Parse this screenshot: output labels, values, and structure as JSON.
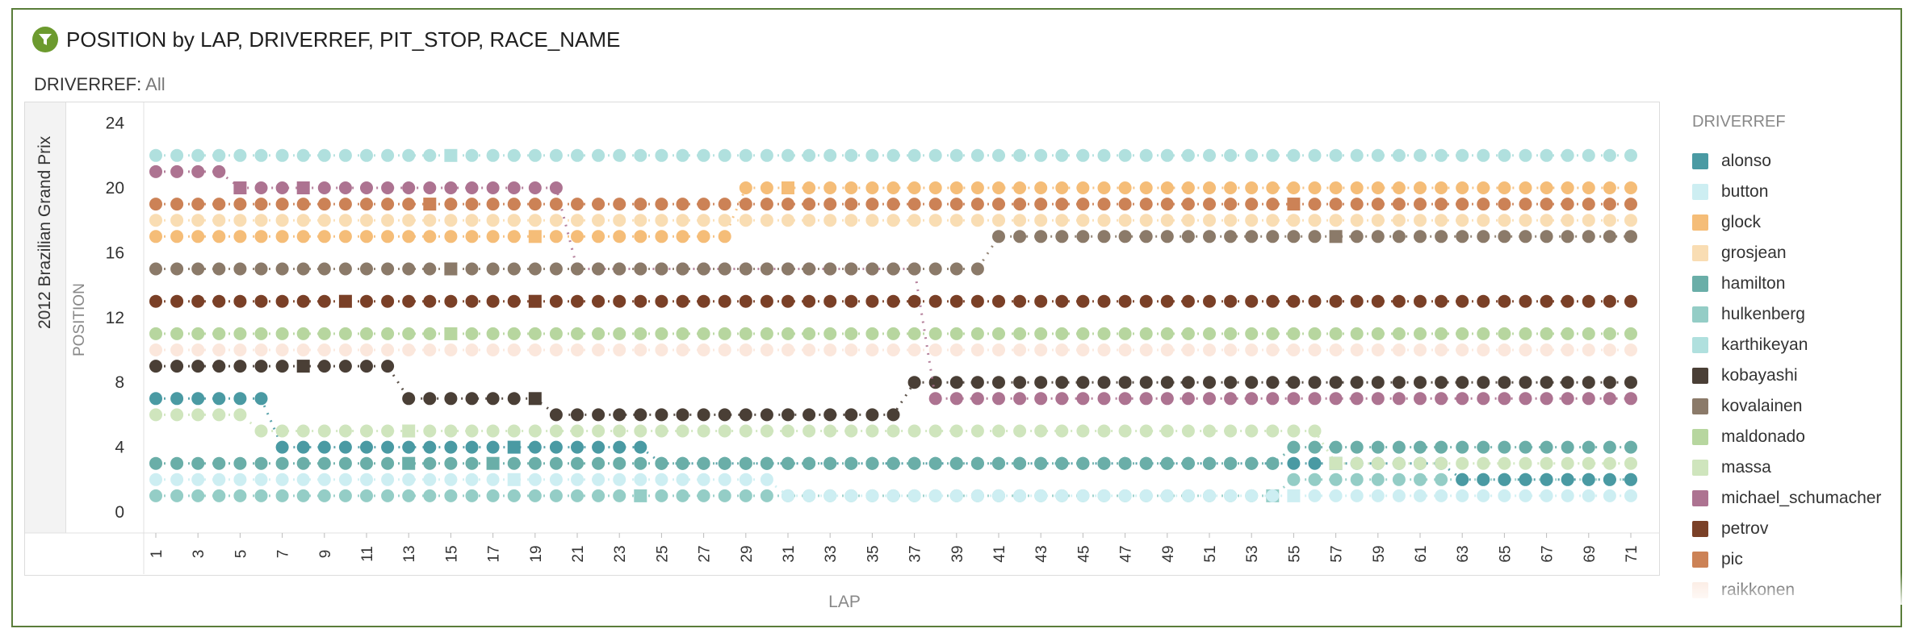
{
  "header": {
    "title": "POSITION by LAP, DRIVERREF, PIT_STOP, RACE_NAME",
    "filter_label": "DRIVERREF:",
    "filter_value": "All"
  },
  "legend": {
    "title": "DRIVERREF",
    "items": [
      {
        "label": "alonso",
        "color": "#4a9aa3"
      },
      {
        "label": "button",
        "color": "#cdeef2"
      },
      {
        "label": "glock",
        "color": "#f5bd78"
      },
      {
        "label": "grosjean",
        "color": "#f9ddb3"
      },
      {
        "label": "hamilton",
        "color": "#6aaea8"
      },
      {
        "label": "hulkenberg",
        "color": "#94cdc6"
      },
      {
        "label": "karthikeyan",
        "color": "#b0e0de"
      },
      {
        "label": "kobayashi",
        "color": "#4a3f36"
      },
      {
        "label": "kovalainen",
        "color": "#8b7a69"
      },
      {
        "label": "maldonado",
        "color": "#b7d69f"
      },
      {
        "label": "massa",
        "color": "#cfe5bd"
      },
      {
        "label": "michael_schumacher",
        "color": "#ad7391"
      },
      {
        "label": "petrov",
        "color": "#7a4027"
      },
      {
        "label": "pic",
        "color": "#cc8256"
      },
      {
        "label": "raikkonen",
        "color": "#fbe7dc"
      }
    ]
  },
  "chart_data": {
    "type": "line",
    "facet": "2012 Brazilian Grand Prix",
    "xlabel": "LAP",
    "ylabel": "POSITION",
    "xlim": [
      1,
      71
    ],
    "ylim": [
      0,
      24
    ],
    "x_ticks": [
      "1",
      "3",
      "5",
      "7",
      "9",
      "11",
      "13",
      "15",
      "17",
      "19",
      "21",
      "23",
      "25",
      "27",
      "29",
      "31",
      "33",
      "35",
      "37",
      "39",
      "41",
      "43",
      "45",
      "47",
      "49",
      "51",
      "53",
      "55",
      "57",
      "59",
      "61",
      "63",
      "65",
      "67",
      "69",
      "71"
    ],
    "y_ticks": [
      "0",
      "4",
      "8",
      "12",
      "16",
      "20",
      "24"
    ],
    "marker_shape_meaning": "square = pit stop lap, circle = no pit stop",
    "series": [
      {
        "name": "hulkenberg",
        "color": "#94cdc6",
        "positions": [
          {
            "from": 1,
            "to": 18,
            "pos": 1
          },
          {
            "from": 19,
            "to": 54,
            "pos": 1
          },
          {
            "from": 55,
            "to": 71,
            "pos": 2
          }
        ],
        "pit_laps": [
          24,
          54
        ]
      },
      {
        "name": "button",
        "color": "#cdeef2",
        "positions": [
          {
            "from": 1,
            "to": 30,
            "pos": 2
          },
          {
            "from": 31,
            "to": 71,
            "pos": 1
          }
        ],
        "pit_laps": [
          18,
          55
        ]
      },
      {
        "name": "alonso",
        "color": "#4a9aa3",
        "positions": [
          {
            "from": 1,
            "to": 6,
            "pos": 7
          },
          {
            "from": 7,
            "to": 9,
            "pos": 4
          },
          {
            "from": 10,
            "to": 24,
            "pos": 4
          },
          {
            "from": 25,
            "to": 62,
            "pos": 3
          },
          {
            "from": 63,
            "to": 71,
            "pos": 2
          }
        ],
        "pit_laps": [
          18,
          57
        ]
      },
      {
        "name": "hamilton",
        "color": "#6aaea8",
        "positions": [
          {
            "from": 1,
            "to": 10,
            "pos": 3
          },
          {
            "from": 11,
            "to": 54,
            "pos": 3
          },
          {
            "from": 55,
            "to": 71,
            "pos": 4
          }
        ],
        "pit_laps": [
          13,
          17
        ]
      },
      {
        "name": "massa",
        "color": "#cfe5bd",
        "positions": [
          {
            "from": 1,
            "to": 5,
            "pos": 6
          },
          {
            "from": 6,
            "to": 56,
            "pos": 5
          },
          {
            "from": 57,
            "to": 71,
            "pos": 3
          }
        ],
        "pit_laps": [
          13,
          57
        ]
      },
      {
        "name": "kobayashi",
        "color": "#4a3f36",
        "positions": [
          {
            "from": 1,
            "to": 12,
            "pos": 9
          },
          {
            "from": 13,
            "to": 19,
            "pos": 7
          },
          {
            "from": 20,
            "to": 36,
            "pos": 6
          },
          {
            "from": 37,
            "to": 71,
            "pos": 8
          }
        ],
        "pit_laps": [
          8,
          19
        ]
      },
      {
        "name": "michael_schumacher",
        "color": "#ad7391",
        "positions": [
          {
            "from": 1,
            "to": 4,
            "pos": 21
          },
          {
            "from": 5,
            "to": 20,
            "pos": 20
          },
          {
            "from": 21,
            "to": 37,
            "pos": 15
          },
          {
            "from": 38,
            "to": 71,
            "pos": 7
          }
        ],
        "pit_laps": [
          5,
          8
        ]
      },
      {
        "name": "kovalainen",
        "color": "#8b7a69",
        "positions": [
          {
            "from": 1,
            "to": 40,
            "pos": 15
          },
          {
            "from": 41,
            "to": 71,
            "pos": 17
          }
        ],
        "pit_laps": [
          15,
          57
        ]
      },
      {
        "name": "glock",
        "color": "#f5bd78",
        "positions": [
          {
            "from": 1,
            "to": 28,
            "pos": 17
          },
          {
            "from": 29,
            "to": 71,
            "pos": 20
          }
        ],
        "pit_laps": [
          19,
          31
        ]
      },
      {
        "name": "grosjean",
        "color": "#f9ddb3",
        "positions": [
          {
            "from": 1,
            "to": 71,
            "pos": 18
          }
        ],
        "pit_laps": []
      },
      {
        "name": "petrov",
        "color": "#7a4027",
        "positions": [
          {
            "from": 1,
            "to": 71,
            "pos": 13
          }
        ],
        "pit_laps": [
          10,
          19
        ]
      },
      {
        "name": "pic",
        "color": "#cc8256",
        "positions": [
          {
            "from": 1,
            "to": 71,
            "pos": 19
          }
        ],
        "pit_laps": [
          14,
          55
        ]
      },
      {
        "name": "maldonado",
        "color": "#b7d69f",
        "positions": [
          {
            "from": 1,
            "to": 71,
            "pos": 11
          }
        ],
        "pit_laps": [
          15
        ]
      },
      {
        "name": "karthikeyan",
        "color": "#b0e0de",
        "positions": [
          {
            "from": 1,
            "to": 71,
            "pos": 22
          }
        ],
        "pit_laps": [
          15
        ]
      },
      {
        "name": "raikkonen",
        "color": "#fbe7dc",
        "positions": [
          {
            "from": 1,
            "to": 71,
            "pos": 10
          }
        ],
        "pit_laps": []
      }
    ]
  }
}
